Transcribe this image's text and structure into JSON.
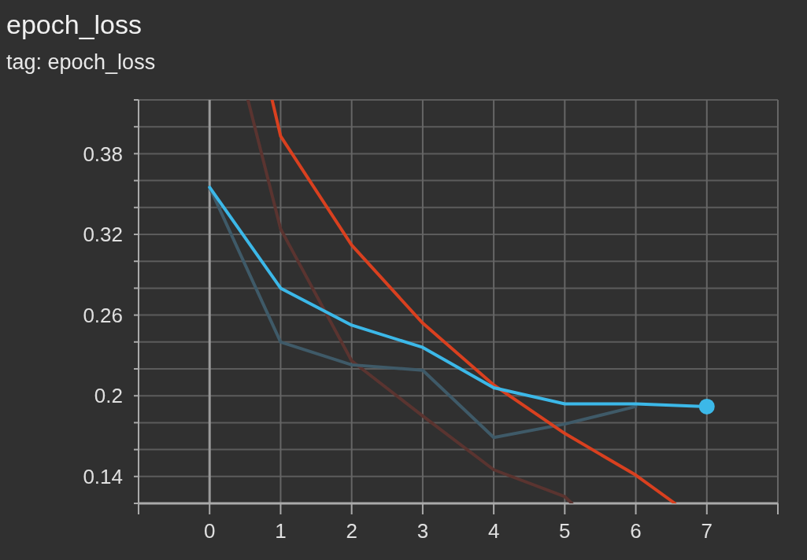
{
  "chart_data": {
    "type": "line",
    "title": "epoch_loss",
    "subtitle": "tag: epoch_loss",
    "xlim": [
      -1,
      8
    ],
    "xticks": [
      {
        "value": -1,
        "label": null
      },
      0,
      1,
      2,
      3,
      4,
      5,
      6,
      7,
      {
        "value": 8,
        "label": null
      }
    ],
    "ylim": [
      0.12,
      0.42
    ],
    "yticks": [
      {
        "value": 0.12,
        "label": null
      },
      0.14,
      {
        "value": 0.16,
        "label": null
      },
      {
        "value": 0.18,
        "label": null
      },
      0.2,
      {
        "value": 0.22,
        "label": null
      },
      {
        "value": 0.24,
        "label": null
      },
      0.26,
      {
        "value": 0.28,
        "label": null
      },
      {
        "value": 0.3,
        "label": null
      },
      0.32,
      {
        "value": 0.34,
        "label": null
      },
      {
        "value": 0.36,
        "label": null
      },
      0.38,
      {
        "value": 0.4,
        "label": null
      },
      {
        "value": 0.42,
        "label": null
      }
    ],
    "grid": true,
    "series": [
      {
        "color": "#5a3430",
        "x": [
          0.54,
          1,
          2,
          3,
          4,
          5,
          5.1
        ],
        "values": [
          0.42,
          0.324,
          0.226,
          0.185,
          0.145,
          0.125,
          0.12
        ]
      },
      {
        "color": "#3f5a68",
        "x": [
          0,
          1,
          2,
          3,
          4,
          5,
          6
        ],
        "values": [
          0.355,
          0.24,
          0.223,
          0.219,
          0.169,
          0.179,
          0.192
        ]
      },
      {
        "color": "#d9401f",
        "x": [
          0.88,
          1,
          2,
          3,
          4,
          5,
          6,
          6.55
        ],
        "values": [
          0.42,
          0.393,
          0.312,
          0.254,
          0.208,
          0.172,
          0.141,
          0.12
        ]
      },
      {
        "color": "#3cb8e8",
        "x": [
          0,
          1,
          2,
          3,
          4,
          5,
          6,
          7
        ],
        "values": [
          0.355,
          0.28,
          0.2525,
          0.236,
          0.206,
          0.194,
          0.194,
          0.192
        ]
      },
      {
        "type": "scatter",
        "marker": "circle",
        "color": "#3cb8e8",
        "x": [
          7
        ],
        "values": [
          0.192
        ]
      }
    ]
  }
}
